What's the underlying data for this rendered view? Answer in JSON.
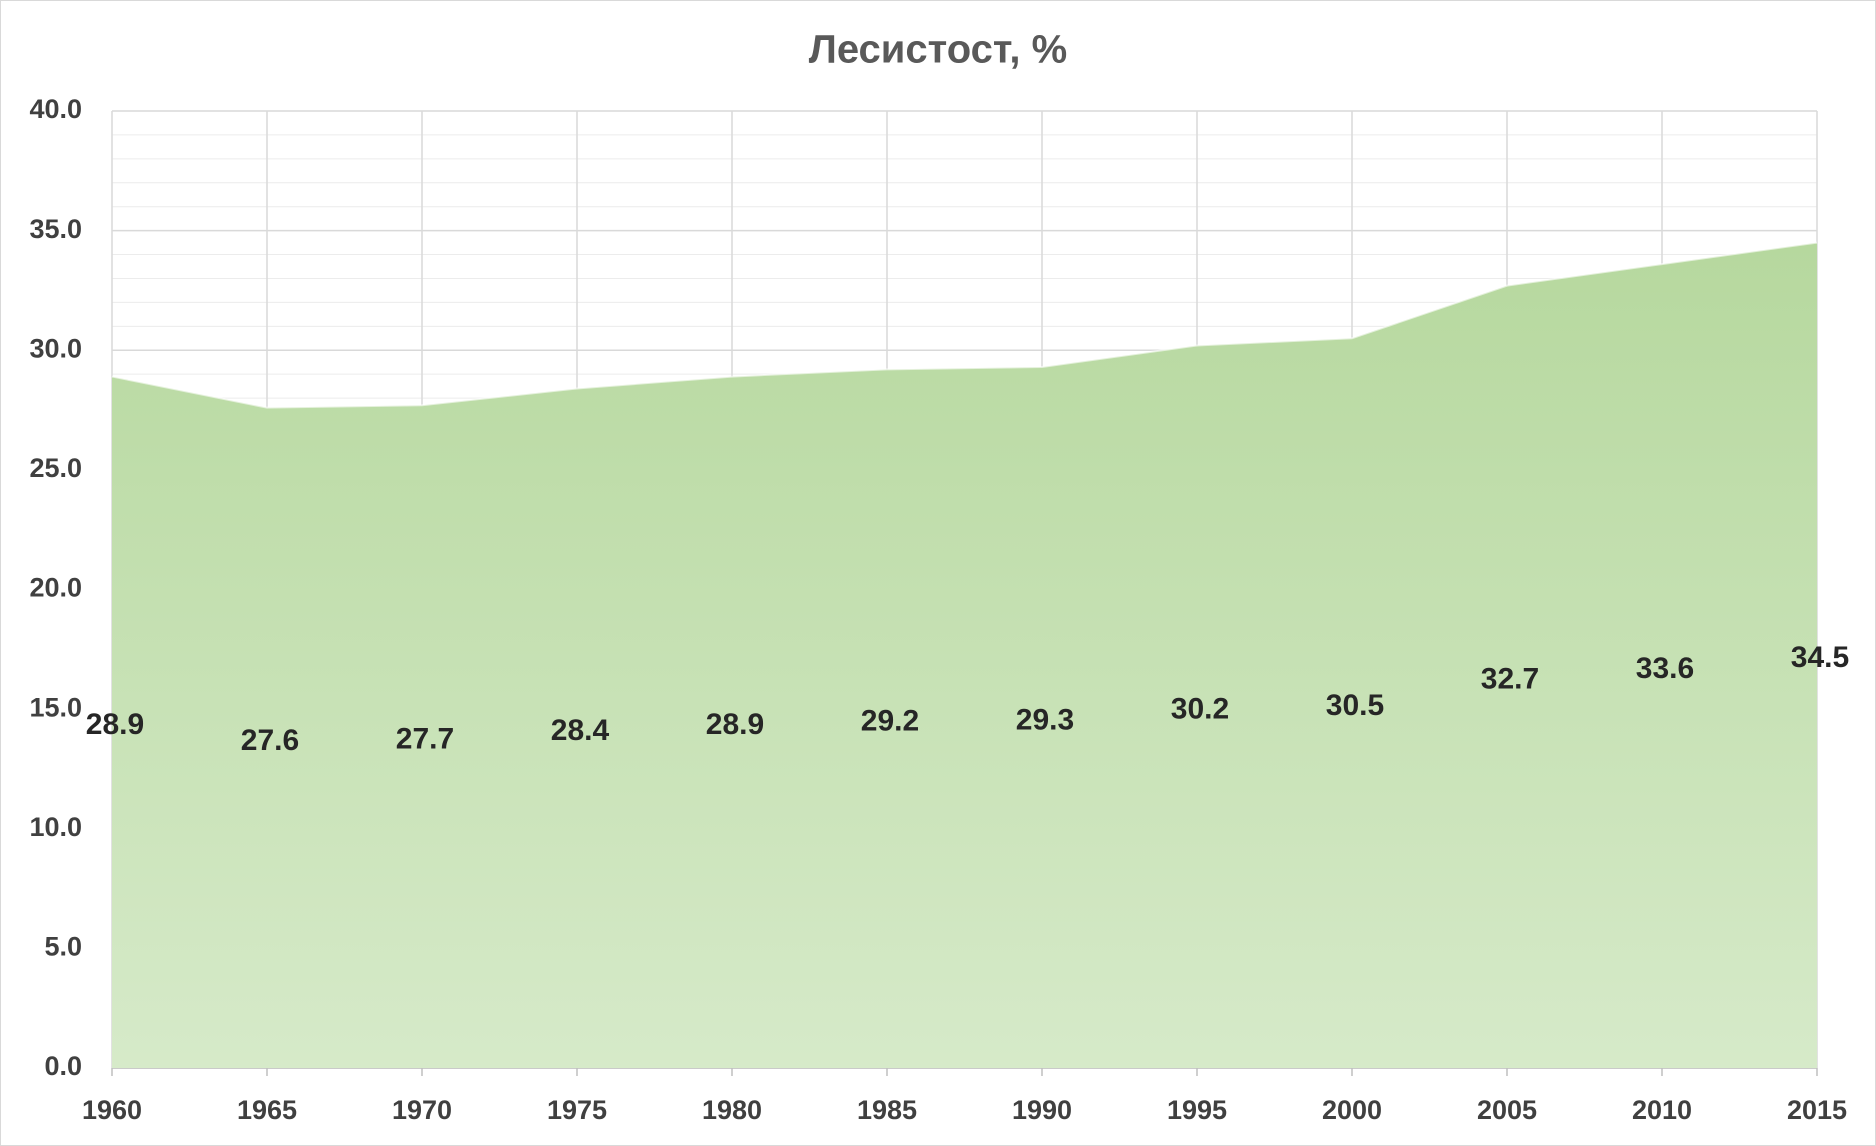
{
  "chart_data": {
    "type": "area",
    "title": "Лесистост, %",
    "x": [
      1960,
      1965,
      1970,
      1975,
      1980,
      1985,
      1990,
      1995,
      2000,
      2005,
      2010,
      2015
    ],
    "values": [
      28.9,
      27.6,
      27.7,
      28.4,
      28.9,
      29.2,
      29.3,
      30.2,
      30.5,
      32.7,
      33.6,
      34.5
    ],
    "color": "#bcdca6",
    "xlim": [
      1960,
      2015
    ],
    "xticks": [
      1960,
      1965,
      1970,
      1975,
      1980,
      1985,
      1990,
      1995,
      2000,
      2005,
      2010,
      2015
    ],
    "ylim": [
      0,
      40
    ],
    "yticks": [
      {
        "value": 0,
        "label": "0.0"
      },
      {
        "value": 5,
        "label": "5.0"
      },
      {
        "value": 10,
        "label": "10.0"
      },
      {
        "value": 15,
        "label": "15.0"
      },
      {
        "value": 20,
        "label": "20.0"
      },
      {
        "value": 25,
        "label": "25.0"
      },
      {
        "value": 30,
        "label": "30.0"
      },
      {
        "value": 35,
        "label": "35.0"
      },
      {
        "value": 40,
        "label": "40.0"
      }
    ],
    "grid": true,
    "minor_grid": true,
    "data_labels": true
  }
}
